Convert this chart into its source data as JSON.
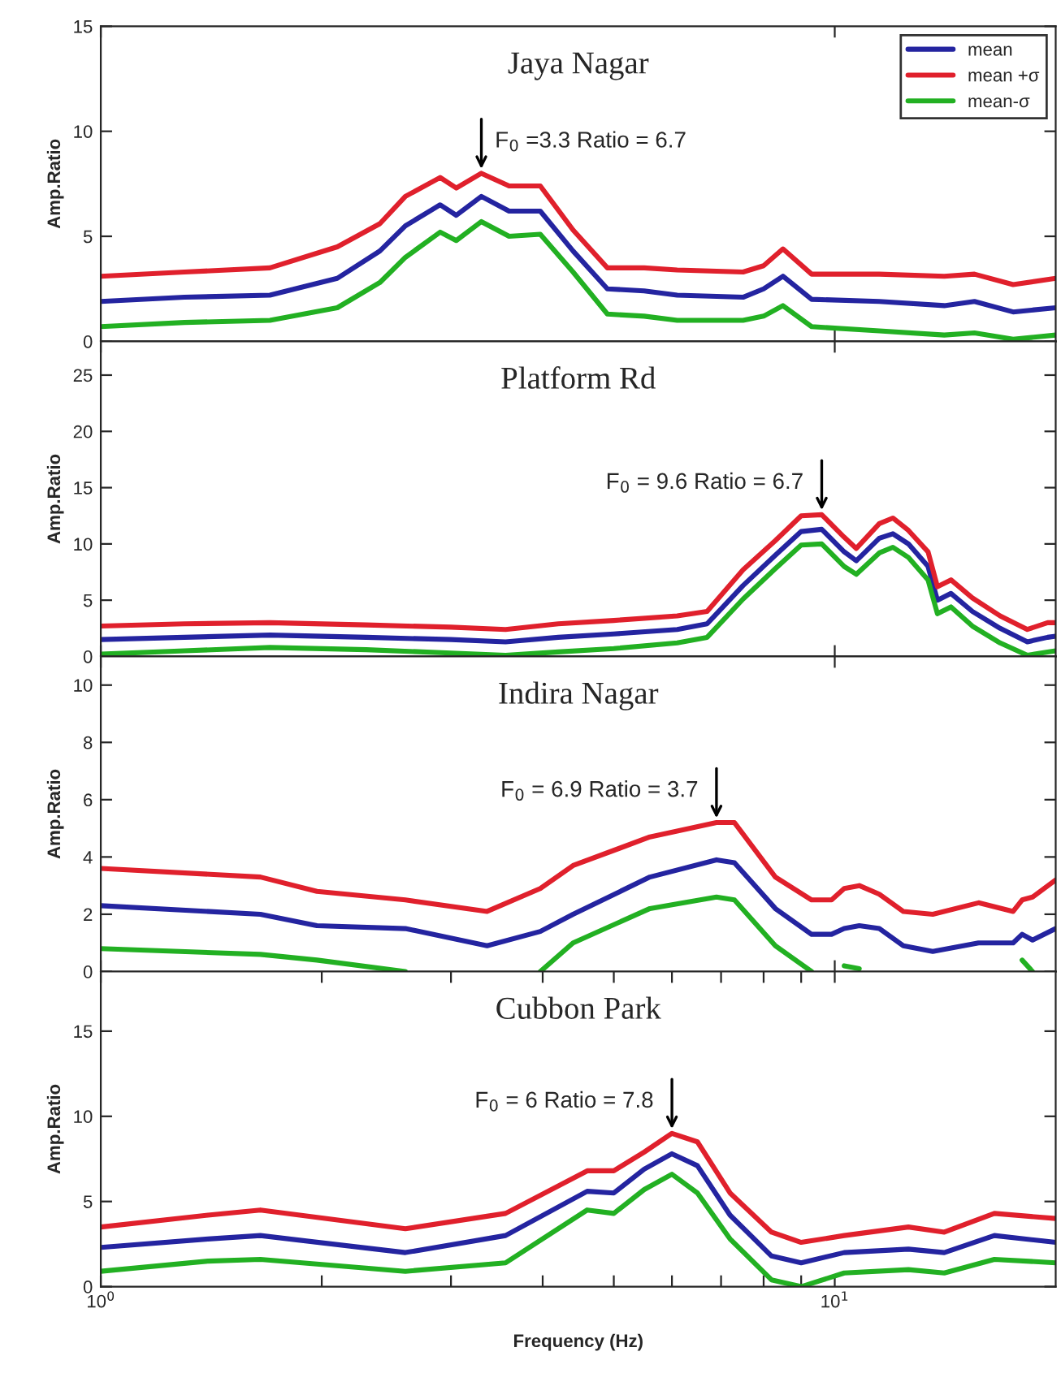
{
  "chart_data": [
    {
      "type": "line",
      "title": "Jaya Nagar",
      "ylabel": "Amp.Ratio",
      "log": "x",
      "xlim": [
        1,
        20
      ],
      "xticks": [
        {
          "value": 1,
          "label": null
        },
        {
          "value": 10,
          "label": null
        }
      ],
      "ylim": [
        0,
        15
      ],
      "yticks": [
        0,
        5,
        10,
        15
      ],
      "tick_labels": "y",
      "legend": "top right",
      "x": [
        1,
        1.3,
        1.7,
        2.1,
        2.4,
        2.6,
        2.9,
        3.05,
        3.3,
        3.6,
        3.97,
        4.4,
        4.9,
        5.5,
        6.1,
        7.5,
        8.0,
        8.5,
        9.3,
        11.5,
        14.1,
        15.5,
        17.5,
        20
      ],
      "series": [
        {
          "name": "mean",
          "color": "#2424a0",
          "values": [
            1.9,
            2.1,
            2.2,
            3.0,
            4.3,
            5.5,
            6.5,
            6.0,
            6.9,
            6.2,
            6.2,
            4.3,
            2.5,
            2.4,
            2.2,
            2.1,
            2.5,
            3.1,
            2.0,
            1.9,
            1.7,
            1.9,
            1.4,
            1.6
          ]
        },
        {
          "name": "mean +σ",
          "color": "#e0202c",
          "values": [
            3.1,
            3.3,
            3.5,
            4.5,
            5.6,
            6.9,
            7.8,
            7.3,
            8.0,
            7.4,
            7.4,
            5.3,
            3.5,
            3.5,
            3.4,
            3.3,
            3.6,
            4.4,
            3.2,
            3.2,
            3.1,
            3.2,
            2.7,
            3.0
          ]
        },
        {
          "name": "mean-σ",
          "color": "#22b022",
          "values": [
            0.7,
            0.9,
            1.0,
            1.6,
            2.8,
            4.0,
            5.2,
            4.8,
            5.7,
            5.0,
            5.1,
            3.3,
            1.3,
            1.2,
            1.0,
            1.0,
            1.2,
            1.7,
            0.7,
            0.5,
            0.3,
            0.4,
            0.1,
            0.3
          ]
        }
      ],
      "annotations": [
        {
          "text": "F$_{0}$ =3.3 Ratio = 6.7",
          "x": 3.3,
          "y": 8.0
        }
      ]
    },
    {
      "type": "line",
      "title": "Platform Rd",
      "ylabel": "Amp.Ratio",
      "log": "x",
      "xlim": [
        1,
        20
      ],
      "xticks": [
        {
          "value": 1,
          "label": null
        },
        {
          "value": 10,
          "label": null
        }
      ],
      "ylim": [
        0,
        28
      ],
      "yticks": [
        0,
        5,
        10,
        15,
        20,
        25
      ],
      "tick_labels": "y",
      "x": [
        1,
        1.3,
        1.7,
        2.3,
        3.0,
        3.56,
        4.2,
        5.0,
        6.1,
        6.7,
        7.5,
        8.3,
        9.0,
        9.6,
        10.3,
        10.7,
        11.5,
        12.0,
        12.6,
        13.4,
        13.8,
        14.4,
        15.4,
        16.8,
        18.3,
        19.5,
        20
      ],
      "series": [
        {
          "color": "#2424a0",
          "values": [
            1.5,
            1.7,
            1.9,
            1.7,
            1.5,
            1.3,
            1.7,
            2.0,
            2.4,
            2.9,
            6.3,
            9.0,
            11.1,
            11.3,
            9.3,
            8.5,
            10.5,
            10.9,
            10.0,
            8.0,
            5.0,
            5.6,
            4.0,
            2.5,
            1.3,
            1.7,
            1.8
          ]
        },
        {
          "color": "#e0202c",
          "values": [
            2.7,
            2.9,
            3.0,
            2.8,
            2.6,
            2.4,
            2.9,
            3.2,
            3.6,
            4.0,
            7.7,
            10.3,
            12.5,
            12.6,
            10.6,
            9.6,
            11.8,
            12.3,
            11.2,
            9.3,
            6.2,
            6.8,
            5.2,
            3.6,
            2.4,
            3.0,
            3.0
          ]
        },
        {
          "color": "#22b022",
          "values": [
            0.2,
            0.5,
            0.8,
            0.6,
            0.3,
            0.1,
            0.4,
            0.7,
            1.2,
            1.7,
            5.1,
            7.8,
            9.9,
            10.0,
            8.0,
            7.3,
            9.2,
            9.7,
            8.8,
            6.8,
            3.8,
            4.4,
            2.7,
            1.2,
            0.1,
            0.4,
            0.5
          ]
        }
      ],
      "annotations": [
        {
          "text": "F$_{0}$ = 9.6 Ratio = 6.7",
          "x": 9.6,
          "y": 12.6
        }
      ]
    },
    {
      "type": "line",
      "title": "Indira Nagar",
      "ylabel": "Amp.Ratio",
      "log": "x",
      "xlim": [
        1,
        20
      ],
      "xticks": [
        {
          "value": 1,
          "label": null
        },
        {
          "value": 10,
          "label": null
        }
      ],
      "ylim": [
        0,
        11
      ],
      "yticks": [
        0,
        2,
        4,
        6,
        8,
        10
      ],
      "tick_labels": "y",
      "x": [
        1,
        1.65,
        1.97,
        2.6,
        3.36,
        3.97,
        4.4,
        5.6,
        6.9,
        7.3,
        8.3,
        9.3,
        9.9,
        10.3,
        10.8,
        11.5,
        12.4,
        13.6,
        15.7,
        17.5,
        18.0,
        18.6,
        20
      ],
      "series": [
        {
          "color": "#2424a0",
          "values": [
            2.3,
            2.0,
            1.6,
            1.5,
            0.9,
            1.4,
            2.0,
            3.3,
            3.9,
            3.8,
            2.2,
            1.3,
            1.3,
            1.5,
            1.6,
            1.5,
            0.9,
            0.7,
            1.0,
            1.0,
            1.3,
            1.1,
            1.5
          ]
        },
        {
          "color": "#e0202c",
          "values": [
            3.6,
            3.3,
            2.8,
            2.5,
            2.1,
            2.9,
            3.7,
            4.7,
            5.2,
            5.2,
            3.3,
            2.5,
            2.5,
            2.9,
            3.0,
            2.7,
            2.1,
            2.0,
            2.4,
            2.1,
            2.5,
            2.6,
            3.2
          ]
        },
        {
          "color": "#22b022",
          "values": [
            0.8,
            0.6,
            0.4,
            0.0,
            null,
            0.0,
            1.0,
            2.2,
            2.6,
            2.5,
            0.9,
            0.0,
            null,
            0.2,
            0.1,
            null,
            null,
            null,
            null,
            null,
            0.4,
            0.0,
            null
          ]
        }
      ],
      "annotations": [
        {
          "text": "F$_{0}$ = 6.9 Ratio = 3.7",
          "x": 6.9,
          "y": 5.2
        }
      ]
    },
    {
      "type": "line",
      "title": "Cubbon Park",
      "xlabel": "Frequency (Hz)",
      "ylabel": "Amp.Ratio",
      "log": "x",
      "xlim": [
        1,
        20
      ],
      "xticks": [
        {
          "value": 1,
          "label": "10$^{0}$"
        },
        {
          "value": 2,
          "label": null
        },
        {
          "value": 3,
          "label": null
        },
        {
          "value": 4,
          "label": null
        },
        {
          "value": 5,
          "label": null
        },
        {
          "value": 6,
          "label": null
        },
        {
          "value": 7,
          "label": null
        },
        {
          "value": 8,
          "label": null
        },
        {
          "value": 9,
          "label": null
        },
        {
          "value": 10,
          "label": "10$^{1}$"
        }
      ],
      "ylim": [
        0,
        18.5
      ],
      "yticks": [
        0,
        5,
        10,
        15
      ],
      "x": [
        1,
        1.4,
        1.65,
        2.6,
        3.56,
        4.6,
        5.0,
        5.5,
        6.0,
        6.5,
        7.2,
        8.2,
        9.0,
        10.3,
        12.6,
        14.1,
        16.5,
        20
      ],
      "series": [
        {
          "color": "#2424a0",
          "values": [
            2.3,
            2.8,
            3.0,
            2.0,
            3.0,
            5.6,
            5.5,
            6.9,
            7.8,
            7.1,
            4.2,
            1.8,
            1.4,
            2.0,
            2.2,
            2.0,
            3.0,
            2.6
          ]
        },
        {
          "color": "#e0202c",
          "values": [
            3.5,
            4.2,
            4.5,
            3.4,
            4.3,
            6.8,
            6.8,
            7.9,
            9.0,
            8.5,
            5.5,
            3.2,
            2.6,
            3.0,
            3.5,
            3.2,
            4.3,
            4.0
          ]
        },
        {
          "color": "#22b022",
          "values": [
            0.9,
            1.5,
            1.6,
            0.9,
            1.4,
            4.5,
            4.3,
            5.7,
            6.6,
            5.5,
            2.8,
            0.4,
            0.0,
            0.8,
            1.0,
            0.8,
            1.6,
            1.4
          ]
        }
      ],
      "annotations": [
        {
          "text": "F$_{0}$ = 6 Ratio = 7.8",
          "x": 6.0,
          "y": 9.0
        }
      ]
    }
  ]
}
